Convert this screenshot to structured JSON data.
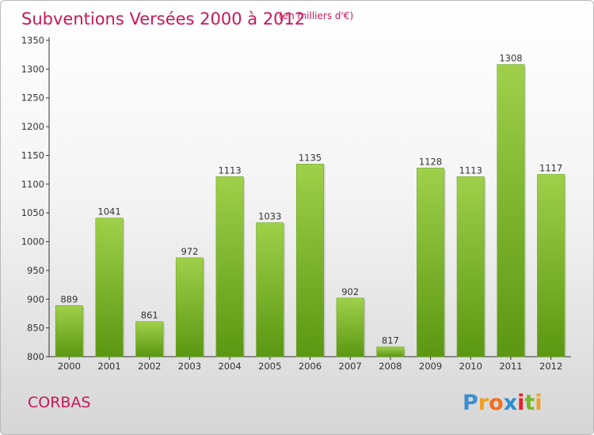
{
  "title": "Subventions Versées 2000 à 2012",
  "subtitle": "(en milliers d'€)",
  "commune": "CORBAS",
  "logo": {
    "text": "Proxiti",
    "letters": [
      "P",
      "r",
      "o",
      "x",
      "i",
      "t",
      "i"
    ],
    "colors": [
      "#3b8fd0",
      "#f0a020",
      "#f07020",
      "#2a8fd0",
      "#e8202a",
      "#78b828",
      "#f0a020"
    ]
  },
  "colors": {
    "accent": "#c8175a",
    "bar_top": "#9fd04a",
    "bar_bottom": "#5b9712"
  },
  "chart_data": {
    "type": "bar",
    "title": "Subventions Versées 2000 à 2012",
    "subtitle": "(en milliers d'€)",
    "categories": [
      "2000",
      "2001",
      "2002",
      "2003",
      "2004",
      "2005",
      "2006",
      "2007",
      "2008",
      "2009",
      "2010",
      "2011",
      "2012"
    ],
    "values": [
      889,
      1041,
      861,
      972,
      1113,
      1033,
      1135,
      902,
      817,
      1128,
      1113,
      1308,
      1117
    ],
    "ylim": [
      800,
      1350
    ],
    "yticks": [
      800,
      850,
      900,
      950,
      1000,
      1050,
      1100,
      1150,
      1200,
      1250,
      1300,
      1350
    ],
    "grid": false,
    "legend": "none"
  }
}
